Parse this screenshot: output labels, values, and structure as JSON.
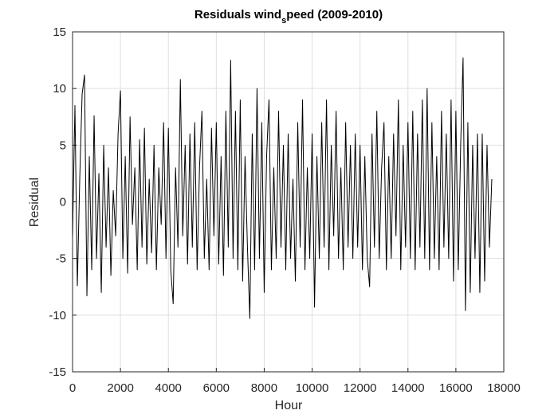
{
  "chart_data": {
    "type": "line",
    "title": [
      "Residuals wind",
      "s",
      "peed (2009-2010)"
    ],
    "x_label": "Hour",
    "y_label": "Residual",
    "xlim": [
      0,
      18000
    ],
    "ylim": [
      -15,
      15
    ],
    "xticks": [
      0,
      2000,
      4000,
      6000,
      8000,
      10000,
      12000,
      14000,
      16000,
      18000
    ],
    "yticks": [
      -15,
      -10,
      -5,
      0,
      5,
      10,
      15
    ],
    "grid": true,
    "color": "#000000",
    "x": [
      0,
      100,
      200,
      300,
      400,
      500,
      600,
      700,
      800,
      900,
      1000,
      1100,
      1200,
      1300,
      1400,
      1500,
      1600,
      1700,
      1800,
      1900,
      2000,
      2100,
      2200,
      2300,
      2400,
      2500,
      2600,
      2700,
      2800,
      2900,
      3000,
      3100,
      3200,
      3300,
      3400,
      3500,
      3600,
      3700,
      3800,
      3900,
      4000,
      4100,
      4200,
      4300,
      4400,
      4500,
      4600,
      4700,
      4800,
      4900,
      5000,
      5100,
      5200,
      5300,
      5400,
      5500,
      5600,
      5700,
      5800,
      5900,
      6000,
      6100,
      6200,
      6300,
      6400,
      6500,
      6600,
      6700,
      6800,
      6900,
      7000,
      7100,
      7200,
      7300,
      7400,
      7500,
      7600,
      7700,
      7800,
      7900,
      8000,
      8100,
      8200,
      8300,
      8400,
      8500,
      8600,
      8700,
      8800,
      8900,
      9000,
      9100,
      9200,
      9300,
      9400,
      9500,
      9600,
      9700,
      9800,
      9900,
      10000,
      10100,
      10200,
      10300,
      10400,
      10500,
      10600,
      10700,
      10800,
      10900,
      11000,
      11100,
      11200,
      11300,
      11400,
      11500,
      11600,
      11700,
      11800,
      11900,
      12000,
      12100,
      12200,
      12300,
      12400,
      12500,
      12600,
      12700,
      12800,
      12900,
      13000,
      13100,
      13200,
      13300,
      13400,
      13500,
      13600,
      13700,
      13800,
      13900,
      14000,
      14100,
      14200,
      14300,
      14400,
      14500,
      14600,
      14700,
      14800,
      14900,
      15000,
      15100,
      15200,
      15300,
      15400,
      15500,
      15600,
      15700,
      15800,
      15900,
      16000,
      16100,
      16200,
      16300,
      16400,
      16500,
      16600,
      16700,
      16800,
      16900,
      17000,
      17100,
      17200,
      17300,
      17400,
      17500
    ],
    "values": [
      -3,
      8.5,
      -7.4,
      2,
      9.5,
      11.2,
      -8.3,
      4,
      -6,
      7.6,
      -5,
      2.5,
      -8,
      5,
      -4,
      3,
      -6.5,
      1,
      -3,
      6,
      9.8,
      -5,
      4,
      -6.3,
      7.5,
      -2,
      3,
      -6,
      5.5,
      -4,
      6.5,
      -5.5,
      2,
      -4.5,
      5,
      -6,
      3,
      -2,
      7,
      -5,
      6.5,
      -6,
      -9,
      3,
      -4,
      10.8,
      -3,
      5,
      -5.5,
      6,
      -4,
      7,
      -6,
      3,
      8,
      -5,
      2,
      -6,
      6.5,
      -3,
      7,
      -5.5,
      4,
      -6.5,
      8,
      -4,
      12.5,
      -5,
      8,
      -6,
      9,
      -7,
      4,
      -4,
      -10.3,
      6,
      -6,
      10,
      -5,
      7,
      -8,
      4,
      9,
      -6,
      3,
      -5,
      8,
      -4,
      5,
      -6,
      6,
      -5,
      2,
      -7,
      7,
      -4,
      9,
      -6,
      3,
      -5,
      6,
      -9.3,
      4,
      -5,
      7,
      -4,
      9,
      -6,
      5,
      -3,
      8,
      -5,
      3,
      -6,
      7,
      -4,
      5,
      -5,
      6,
      -4,
      5,
      -6,
      4,
      -5,
      -7.5,
      6,
      -4,
      8,
      -5,
      3,
      7,
      -6,
      4,
      -5,
      6,
      -3,
      9,
      -6,
      5,
      -4,
      7,
      -5,
      8,
      -6,
      6,
      -4,
      9,
      -5,
      10,
      -6,
      7,
      -5,
      4,
      -6,
      8,
      -4,
      6,
      -5,
      9,
      -7,
      8,
      -6,
      5,
      12.7,
      -9.6,
      7,
      -8,
      5,
      -5,
      6,
      -8,
      6,
      -7,
      5,
      -4,
      2
    ]
  }
}
